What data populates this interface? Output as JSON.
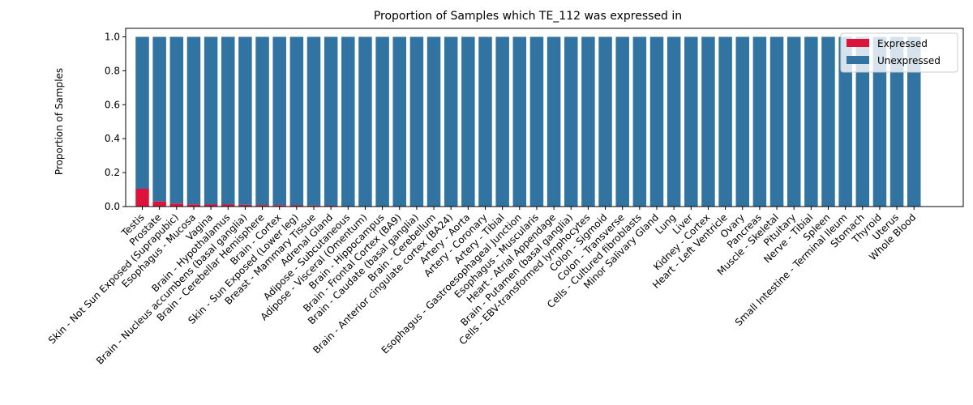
{
  "chart_data": {
    "type": "bar",
    "stacked": true,
    "title": "Proportion of Samples which TE_112 was expressed in",
    "xlabel": "",
    "ylabel": "Proportion of Samples",
    "ylim": [
      0,
      1.05
    ],
    "yticks": [
      "0.0",
      "0.2",
      "0.4",
      "0.6",
      "0.8",
      "1.0"
    ],
    "grid": false,
    "legend_position": "top-right",
    "categories": [
      "Testis",
      "Prostate",
      "Skin - Not Sun Exposed (Suprapubic)",
      "Esophagus - Mucosa",
      "Vagina",
      "Brain - Hypothalamus",
      "Brain - Nucleus accumbens (basal ganglia)",
      "Brain - Cerebellar Hemisphere",
      "Brain - Cortex",
      "Skin - Sun Exposed (Lower leg)",
      "Breast - Mammary Tissue",
      "Adrenal Gland",
      "Adipose - Subcutaneous",
      "Adipose - Visceral (Omentum)",
      "Brain - Hippocampus",
      "Brain - Frontal Cortex (BA9)",
      "Brain - Caudate (basal ganglia)",
      "Brain - Cerebellum",
      "Brain - Anterior cingulate cortex (BA24)",
      "Artery - Aorta",
      "Artery - Coronary",
      "Artery - Tibial",
      "Esophagus - Gastroesophageal Junction",
      "Esophagus - Muscularis",
      "Heart - Atrial Appendage",
      "Brain - Putamen (basal ganglia)",
      "Cells - EBV-transformed lymphocytes",
      "Colon - Sigmoid",
      "Colon - Transverse",
      "Cells - Cultured fibroblasts",
      "Minor Salivary Gland",
      "Lung",
      "Liver",
      "Kidney - Cortex",
      "Heart - Left Ventricle",
      "Ovary",
      "Pancreas",
      "Muscle - Skeletal",
      "Pituitary",
      "Nerve - Tibial",
      "Spleen",
      "Small Intestine - Terminal Ileum",
      "Stomach",
      "Thyroid",
      "Uterus",
      "Whole Blood"
    ],
    "series": [
      {
        "name": "Expressed",
        "color": "#dc143c",
        "values": [
          0.105,
          0.03,
          0.018,
          0.013,
          0.012,
          0.012,
          0.01,
          0.009,
          0.008,
          0.007,
          0.006,
          0.005,
          0,
          0,
          0,
          0,
          0,
          0,
          0,
          0,
          0,
          0,
          0,
          0,
          0,
          0,
          0,
          0,
          0,
          0,
          0,
          0,
          0,
          0,
          0,
          0,
          0,
          0,
          0,
          0,
          0,
          0,
          0,
          0,
          0,
          0
        ]
      },
      {
        "name": "Unexpressed",
        "color": "#3274a1",
        "values": [
          0.895,
          0.97,
          0.982,
          0.987,
          0.988,
          0.988,
          0.99,
          0.991,
          0.992,
          0.993,
          0.994,
          0.995,
          1,
          1,
          1,
          1,
          1,
          1,
          1,
          1,
          1,
          1,
          1,
          1,
          1,
          1,
          1,
          1,
          1,
          1,
          1,
          1,
          1,
          1,
          1,
          1,
          1,
          1,
          1,
          1,
          1,
          1,
          1,
          1,
          1,
          1
        ]
      }
    ]
  }
}
